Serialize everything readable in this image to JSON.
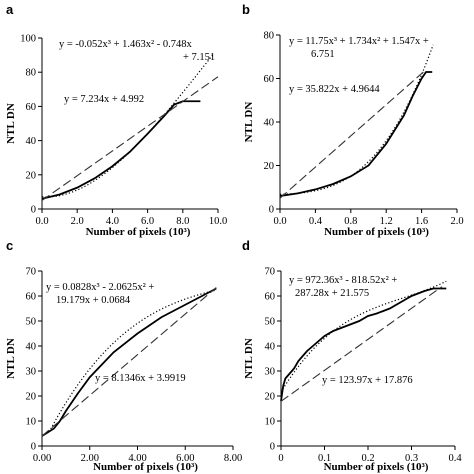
{
  "chart_data": [
    {
      "panel": "a",
      "type": "line",
      "xlabel": "Number of pixels (10³)",
      "ylabel": "NTL DN",
      "xlim": [
        0,
        10
      ],
      "ylim": [
        0,
        100
      ],
      "xticks": [
        "0.0",
        "2.0",
        "4.0",
        "6.0",
        "8.0",
        "10.0"
      ],
      "yticks": [
        "0",
        "20",
        "40",
        "60",
        "80",
        "100"
      ],
      "grid": false,
      "annotations": [
        "y = -0.052x³ + 1.463x² - 0.748x",
        "+ 7.151",
        "y = 7.234x + 4.992"
      ],
      "series": [
        {
          "style": "solid",
          "x": [
            0,
            1,
            2,
            3,
            4,
            5,
            6,
            7,
            7.5,
            8,
            8.5,
            9.0
          ],
          "y": [
            6,
            8.5,
            12.5,
            18,
            25,
            33.5,
            44,
            55,
            61,
            63,
            63,
            63
          ]
        },
        {
          "style": "dotted",
          "poly": [
            -0.052,
            1.463,
            -0.748,
            7.151
          ],
          "xrange": [
            0,
            9.7
          ]
        },
        {
          "style": "dashed",
          "linear": [
            7.234,
            4.992
          ],
          "xrange": [
            0,
            10
          ]
        }
      ]
    },
    {
      "panel": "b",
      "type": "line",
      "xlabel": "Number of pixels (10³)",
      "ylabel": "NTL DN",
      "xlim": [
        0,
        2
      ],
      "ylim": [
        0,
        80
      ],
      "xticks": [
        "0.0",
        "0.4",
        "0.8",
        "1.2",
        "1.6",
        "2.0"
      ],
      "yticks": [
        "0",
        "20",
        "40",
        "60",
        "80"
      ],
      "grid": false,
      "annotations": [
        "y = 11.75x³ + 1.734x² + 1.547x +",
        "6.751",
        "y = 35.822x + 4.9644"
      ],
      "series": [
        {
          "style": "solid",
          "x": [
            0,
            0.2,
            0.4,
            0.6,
            0.8,
            1.0,
            1.2,
            1.4,
            1.5,
            1.6,
            1.65,
            1.7,
            1.72
          ],
          "y": [
            6,
            7.2,
            9,
            11.5,
            15,
            20,
            30,
            43,
            52,
            60,
            63,
            63,
            63
          ]
        },
        {
          "style": "dotted",
          "poly": [
            11.75,
            1.734,
            1.547,
            6.751
          ],
          "xrange": [
            0,
            1.73
          ]
        },
        {
          "style": "dashed",
          "linear": [
            35.822,
            4.9644
          ],
          "xrange": [
            0,
            1.65
          ]
        }
      ]
    },
    {
      "panel": "c",
      "type": "line",
      "xlabel": "Number of pixels (10³)",
      "ylabel": "NTL DN",
      "xlim": [
        0,
        8
      ],
      "ylim": [
        0,
        70
      ],
      "xticks": [
        "0.00",
        "2.00",
        "4.00",
        "6.00",
        "8.00"
      ],
      "yticks": [
        "0",
        "10",
        "20",
        "30",
        "40",
        "50",
        "60",
        "70"
      ],
      "grid": false,
      "annotations": [
        "y = 0.0828x³ - 2.0625x² +",
        "19.179x + 0.0684",
        "y = 8.1346x + 3.9919"
      ],
      "series": [
        {
          "style": "solid",
          "x": [
            0,
            0.25,
            0.5,
            0.75,
            1.0,
            1.5,
            2,
            3,
            4,
            5,
            6,
            7,
            7.3
          ],
          "y": [
            4,
            5.5,
            7,
            10,
            14,
            21,
            27.5,
            37.5,
            45,
            51.5,
            56.5,
            61.5,
            63
          ]
        },
        {
          "style": "dotted",
          "poly": [
            0.0828,
            -2.0625,
            19.179,
            0.0684
          ],
          "xrange": [
            0.3,
            7.3
          ]
        },
        {
          "style": "dashed",
          "linear": [
            8.1346,
            3.9919
          ],
          "xrange": [
            0,
            7.3
          ]
        }
      ]
    },
    {
      "panel": "d",
      "type": "line",
      "xlabel": "Number of pixels (10³)",
      "ylabel": "NTL DN",
      "xlim": [
        0,
        0.4
      ],
      "ylim": [
        0,
        70
      ],
      "xticks": [
        "0",
        "0.1",
        "0.2",
        "0.3",
        "0.4"
      ],
      "yticks": [
        "0",
        "10",
        "20",
        "30",
        "40",
        "50",
        "60",
        "70"
      ],
      "grid": false,
      "annotations": [
        "y = 972.36x³ - 818.52x² +",
        "287.28x + 21.575",
        "y = 123.97x + 17.876"
      ],
      "series": [
        {
          "style": "solid",
          "x": [
            0,
            0.005,
            0.01,
            0.02,
            0.03,
            0.04,
            0.05,
            0.06,
            0.08,
            0.1,
            0.12,
            0.15,
            0.18,
            0.2,
            0.22,
            0.25,
            0.28,
            0.3,
            0.33,
            0.35,
            0.37,
            0.38
          ],
          "y": [
            18,
            24,
            27,
            29,
            31,
            34,
            36,
            38,
            41,
            44,
            46,
            48,
            50,
            52,
            53,
            55,
            58,
            60,
            62,
            63,
            63,
            63
          ]
        },
        {
          "style": "dotted",
          "poly": [
            972.36,
            -818.52,
            287.28,
            21.575
          ],
          "xrange": [
            0,
            0.38
          ]
        },
        {
          "style": "dashed",
          "linear": [
            123.97,
            17.876
          ],
          "xrange": [
            0,
            0.37
          ]
        }
      ]
    }
  ]
}
